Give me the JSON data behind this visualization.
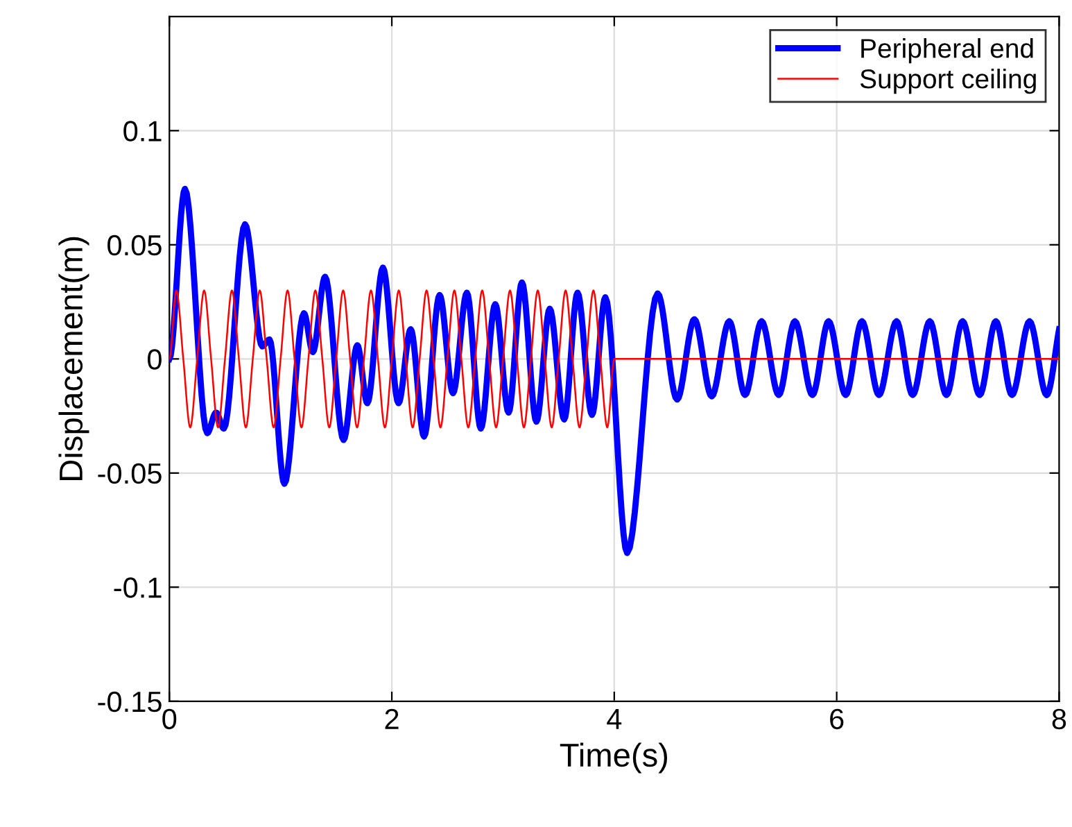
{
  "chart_data": {
    "type": "line",
    "xlabel": "Time(s)",
    "ylabel": "Displacement(m)",
    "xlim": [
      0,
      8
    ],
    "xticks": [
      0,
      2,
      4,
      6,
      8
    ],
    "ylim": [
      -0.15,
      0.15
    ],
    "yticks": [
      -0.15,
      -0.1,
      -0.05,
      0,
      0.05,
      0.1
    ],
    "grid": true,
    "legend": "top right",
    "line_style": "solid",
    "marker": "none",
    "series": [
      {
        "name": "Peripheral end",
        "color": "#0000ff",
        "x": [
          0,
          0.14,
          0.34,
          0.42,
          0.49,
          0.68,
          0.835,
          0.9,
          1.034,
          1.21,
          1.29,
          1.4,
          1.566,
          1.69,
          1.78,
          1.92,
          2.06,
          2.17,
          2.29,
          2.43,
          2.55,
          2.675,
          2.8,
          2.93,
          3.05,
          3.17,
          3.3,
          3.42,
          3.55,
          3.67,
          3.8,
          3.92,
          4.116,
          4.39,
          4.565,
          4.72,
          4.876,
          5.034,
          5.176,
          5.325,
          5.479,
          5.624,
          5.782,
          5.927,
          6.081,
          6.227,
          6.38,
          6.538,
          6.683,
          6.837,
          6.987,
          7.132,
          7.286,
          7.431,
          7.576,
          7.734,
          7.888,
          8
        ],
        "values": [
          0,
          0.0745,
          -0.0325,
          -0.0235,
          -0.0305,
          0.059,
          0.0055,
          0.0085,
          -0.0547,
          0.02,
          0.003,
          0.036,
          -0.0355,
          0.006,
          -0.0194,
          0.04,
          -0.0194,
          0.013,
          -0.034,
          0.028,
          -0.015,
          0.029,
          -0.0305,
          0.024,
          -0.0235,
          0.0335,
          -0.0275,
          0.022,
          -0.0265,
          0.029,
          -0.0245,
          0.027,
          -0.085,
          0.0287,
          -0.0178,
          0.0174,
          -0.0164,
          0.0165,
          -0.0158,
          0.0165,
          -0.0158,
          0.0165,
          -0.0158,
          0.0165,
          -0.0158,
          0.0165,
          -0.0158,
          0.0165,
          -0.0158,
          0.0165,
          -0.0158,
          0.0165,
          -0.0158,
          0.0165,
          -0.0158,
          0.0165,
          -0.0158,
          0.013
        ]
      },
      {
        "name": "Support ceiling",
        "color": "#ff0000",
        "x": [
          0,
          0.0625,
          0.125,
          0.1875,
          0.25,
          0.3125,
          0.375,
          0.4375,
          0.5,
          0.5625,
          0.625,
          0.6875,
          0.75,
          0.8125,
          0.875,
          0.9375,
          1,
          1.0625,
          1.125,
          1.1875,
          1.25,
          1.3125,
          1.375,
          1.4375,
          1.5,
          1.5625,
          1.625,
          1.6875,
          1.75,
          1.8125,
          1.875,
          1.9375,
          2,
          2.0625,
          2.125,
          2.1875,
          2.25,
          2.3125,
          2.375,
          2.4375,
          2.5,
          2.5625,
          2.625,
          2.6875,
          2.75,
          2.8125,
          2.875,
          2.9375,
          3,
          3.0625,
          3.125,
          3.1875,
          3.25,
          3.3125,
          3.375,
          3.4375,
          3.5,
          3.5625,
          3.625,
          3.6875,
          3.75,
          3.8125,
          3.875,
          3.9375,
          4,
          8
        ],
        "values": [
          0,
          0.03,
          0,
          -0.03,
          0,
          0.03,
          0,
          -0.03,
          0,
          0.03,
          0,
          -0.03,
          0,
          0.03,
          0,
          -0.03,
          0,
          0.03,
          0,
          -0.03,
          0,
          0.03,
          0,
          -0.03,
          0,
          0.03,
          0,
          -0.03,
          0,
          0.03,
          0,
          -0.03,
          0,
          0.03,
          0,
          -0.03,
          0,
          0.03,
          0,
          -0.03,
          0,
          0.03,
          0,
          -0.03,
          0,
          0.03,
          0,
          -0.03,
          0,
          0.03,
          0,
          -0.03,
          0,
          0.03,
          0,
          -0.03,
          0,
          0.03,
          0,
          -0.03,
          0,
          0.03,
          0,
          -0.03,
          0,
          0
        ]
      }
    ]
  }
}
